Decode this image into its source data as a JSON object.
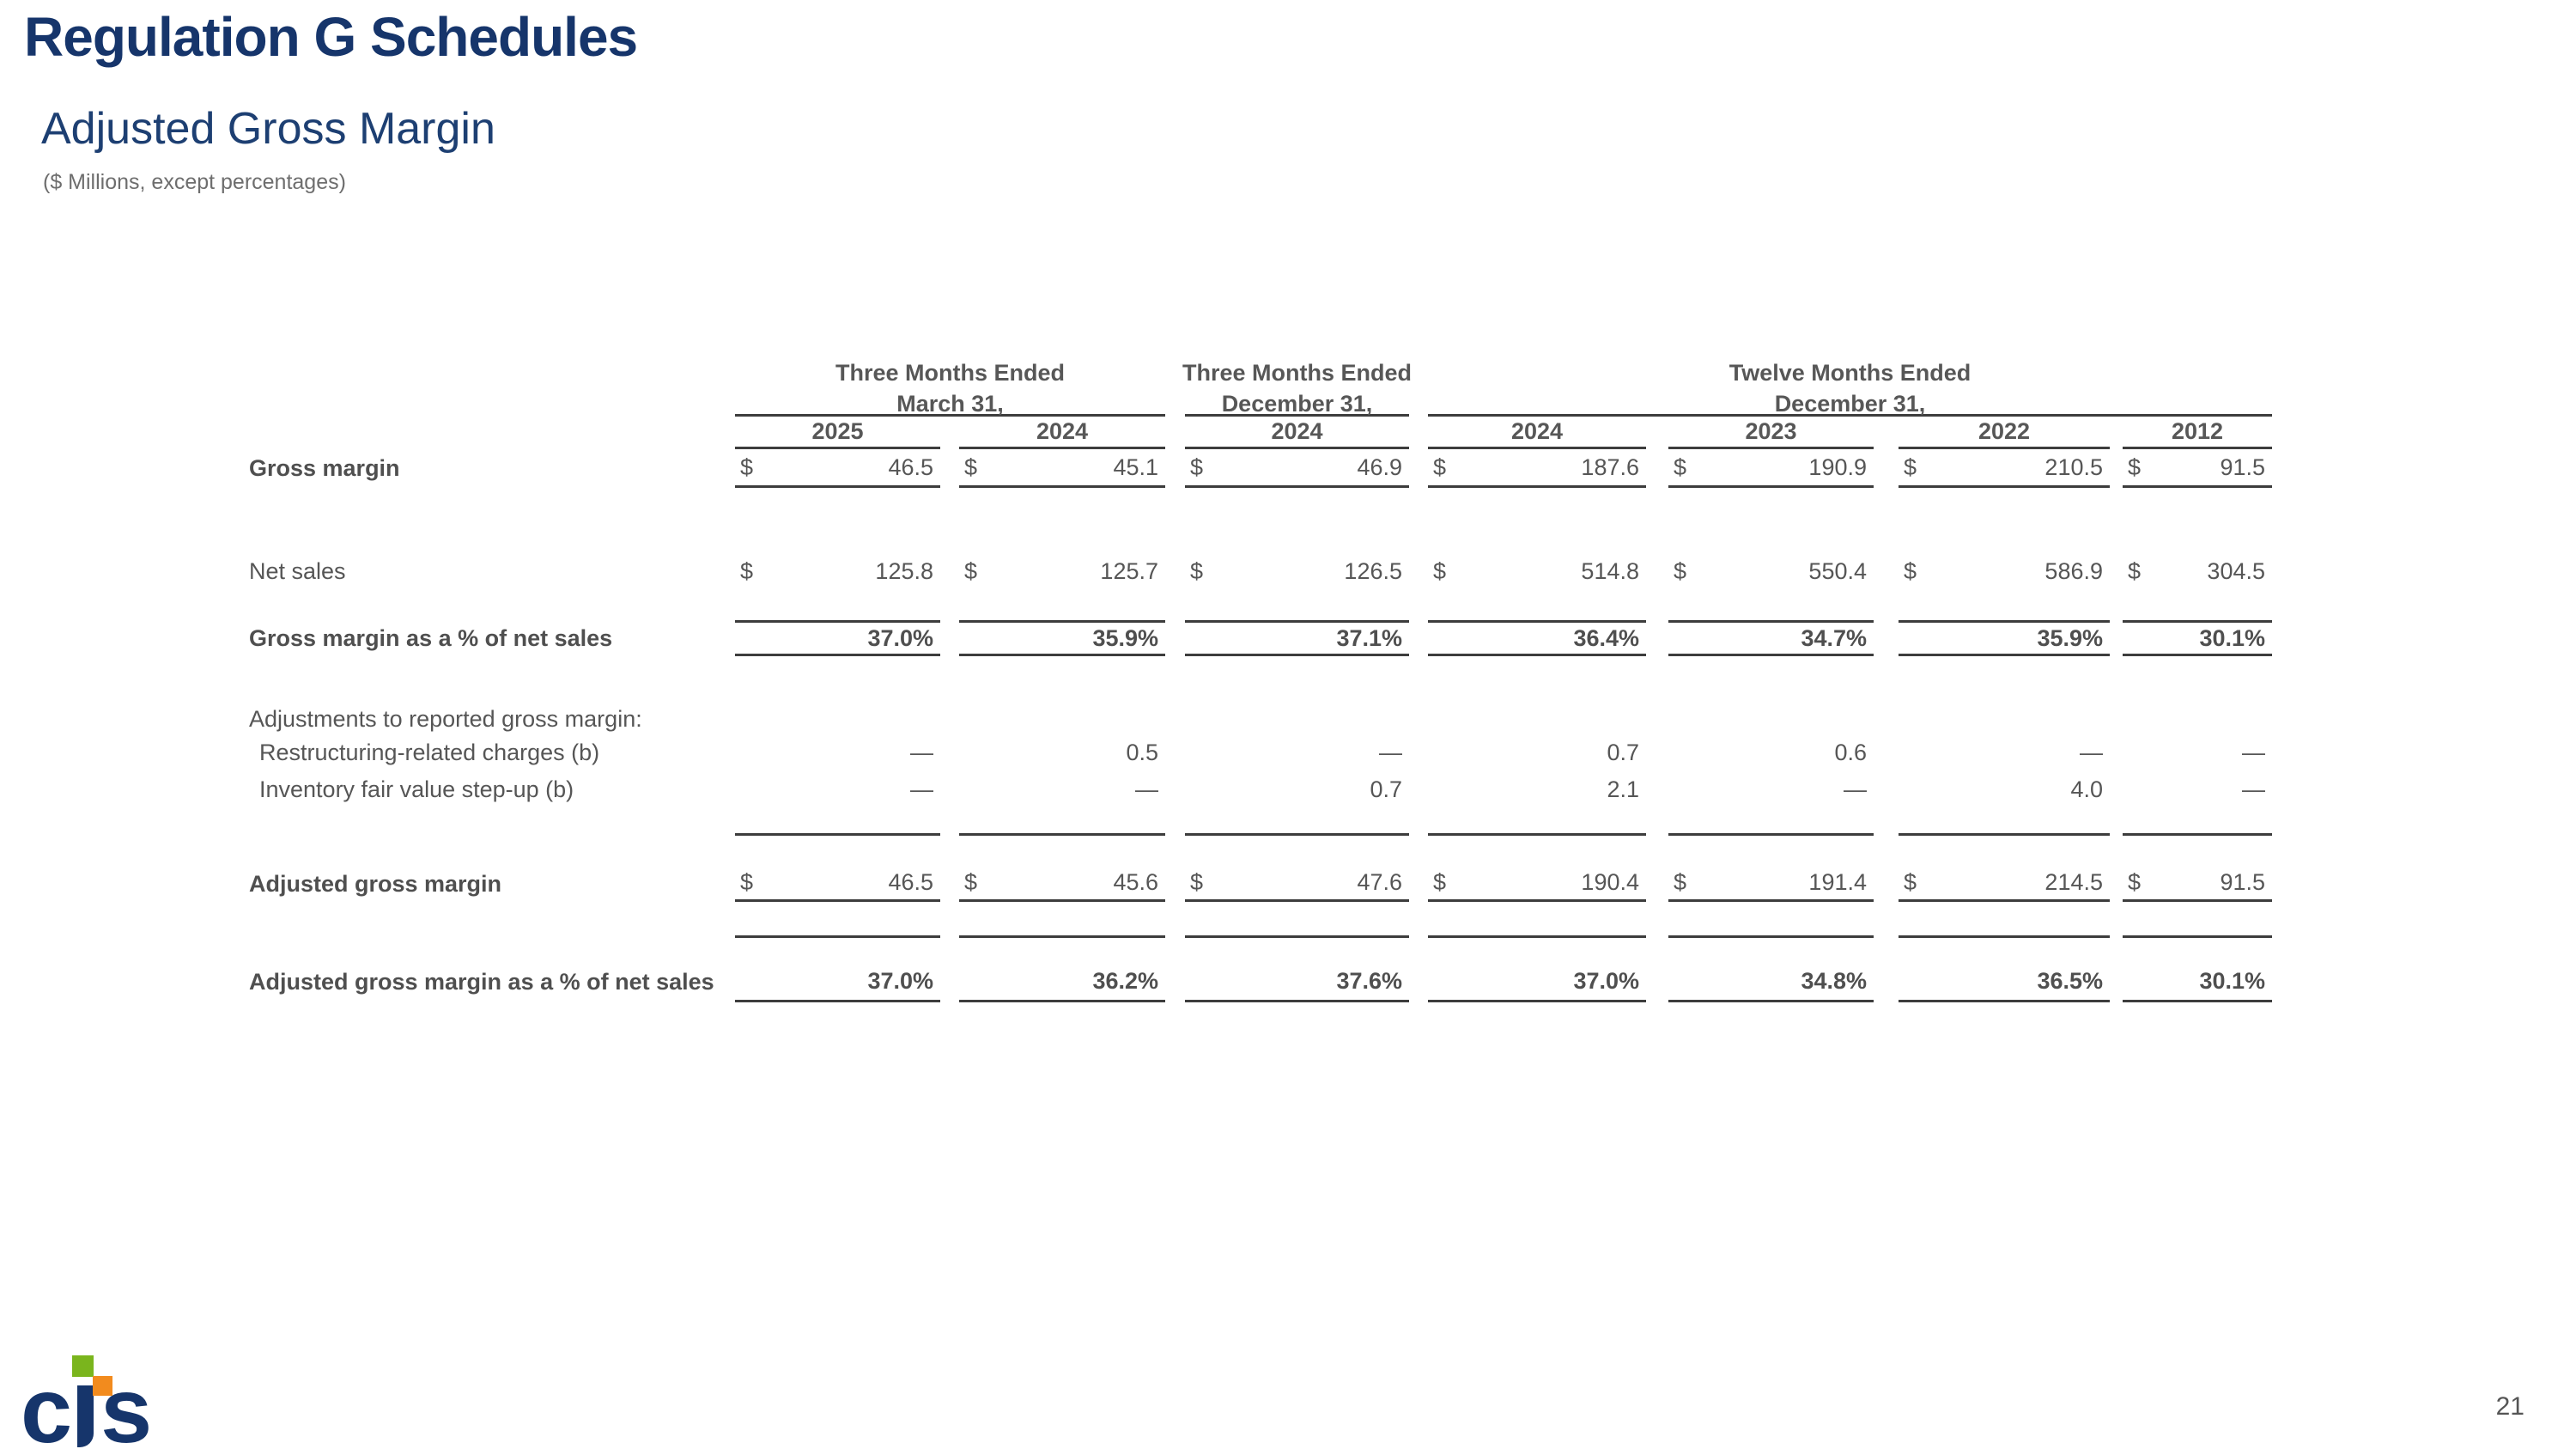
{
  "page": {
    "title": "Regulation G Schedules",
    "subtitle": "Adjusted Gross Margin",
    "note": "($ Millions, except percentages)",
    "page_number": "21"
  },
  "logo": {
    "letter_c": "c",
    "letter_s": "s"
  },
  "colors": {
    "navy": "#16356b",
    "table_text": "#565656",
    "rule_line": "#3d3d3d",
    "logo_green": "#7ab51d",
    "logo_orange": "#f28b1e"
  },
  "table": {
    "currency_symbol": "$",
    "col_groups": [
      {
        "line1": "Three Months Ended",
        "line2": "March 31,"
      },
      {
        "line1": "Three Months Ended",
        "line2": "December 31,"
      },
      {
        "line1": "Twelve Months Ended",
        "line2": "December 31,"
      }
    ],
    "years": [
      "2025",
      "2024",
      "2024",
      "2024",
      "2023",
      "2022",
      "2012"
    ],
    "rows": [
      {
        "label": "Gross margin",
        "type": "money",
        "values": [
          "46.5",
          "45.1",
          "46.9",
          "187.6",
          "190.9",
          "210.5",
          "91.5"
        ]
      },
      {
        "label": "Net sales",
        "type": "money",
        "values": [
          "125.8",
          "125.7",
          "126.5",
          "514.8",
          "550.4",
          "586.9",
          "304.5"
        ]
      },
      {
        "label": "Gross margin as a % of net sales",
        "type": "percent",
        "values": [
          "37.0%",
          "35.9%",
          "37.1%",
          "36.4%",
          "34.7%",
          "35.9%",
          "30.1%"
        ]
      },
      {
        "label": "Adjustments to reported gross margin:",
        "type": "section"
      },
      {
        "label": "Restructuring-related charges (b)",
        "type": "plain",
        "values": [
          "—",
          "0.5",
          "—",
          "0.7",
          "0.6",
          "—",
          "—"
        ]
      },
      {
        "label": "Inventory fair value step-up (b)",
        "type": "plain",
        "values": [
          "—",
          "—",
          "0.7",
          "2.1",
          "—",
          "4.0",
          "—"
        ]
      },
      {
        "label": "Adjusted gross margin",
        "type": "money",
        "values": [
          "46.5",
          "45.6",
          "47.6",
          "190.4",
          "191.4",
          "214.5",
          "91.5"
        ]
      },
      {
        "label": "Adjusted gross margin as a % of net sales",
        "type": "percent",
        "values": [
          "37.0%",
          "36.2%",
          "37.6%",
          "37.0%",
          "34.8%",
          "36.5%",
          "30.1%"
        ]
      }
    ]
  }
}
